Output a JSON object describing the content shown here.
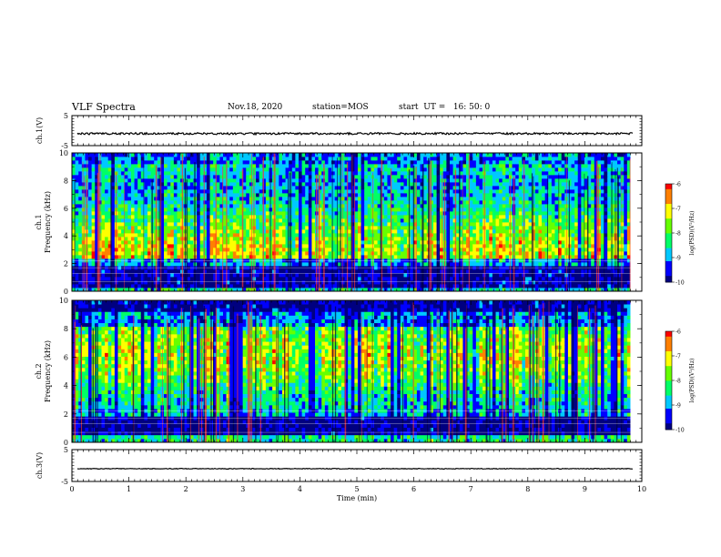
{
  "header": {
    "title": "VLF Spectra",
    "date": "Nov.18, 2020",
    "station": "station=MOS",
    "start_ut": "start  UT =   16: 50: 0"
  },
  "chart_data": [
    {
      "type": "line",
      "name": "ch1_waveform",
      "ylabel": "ch.1(V)",
      "ylim": [
        -5,
        5
      ],
      "yticks": [
        "5",
        "-5"
      ],
      "level": -1,
      "xlim": [
        0,
        10
      ]
    },
    {
      "type": "heatmap",
      "name": "ch1_spectrogram",
      "ylabel": "ch.1",
      "ylabel2": "Frequency (kHz)",
      "ylim": [
        0,
        10
      ],
      "yticks": [
        "0",
        "2",
        "4",
        "6",
        "8",
        "10"
      ],
      "xlim": [
        0,
        10
      ],
      "data_end_min": 9.8,
      "colorbar": {
        "label": "log(PSD)(V²/Hz)",
        "range": [
          -10,
          -6
        ],
        "ticks": [
          "-6",
          "-7",
          "-8",
          "-9",
          "-10"
        ]
      }
    },
    {
      "type": "heatmap",
      "name": "ch2_spectrogram",
      "ylabel": "ch.2",
      "ylabel2": "Frequency (kHz)",
      "ylim": [
        0,
        10
      ],
      "yticks": [
        "0",
        "2",
        "4",
        "6",
        "8",
        "10"
      ],
      "xlim": [
        0,
        10
      ],
      "data_end_min": 9.8,
      "colorbar": {
        "label": "log(PSD)(V²/Hz)",
        "range": [
          -10,
          -6
        ],
        "ticks": [
          "-6",
          "-7",
          "-8",
          "-9",
          "-10"
        ]
      }
    },
    {
      "type": "line",
      "name": "ch3_waveform",
      "ylabel": "ch.3(V)",
      "ylim": [
        -5,
        5
      ],
      "yticks": [
        "5",
        "-5"
      ],
      "level": -1,
      "xlim": [
        0,
        10
      ]
    }
  ],
  "x_axis": {
    "label": "Time (min)",
    "ticks": [
      "0",
      "1",
      "2",
      "3",
      "4",
      "5",
      "6",
      "7",
      "8",
      "9",
      "10"
    ]
  },
  "colors": {
    "colormap": [
      "#000080",
      "#0000ff",
      "#00c8ff",
      "#00ff66",
      "#66ff00",
      "#ffff00",
      "#ff8000",
      "#ff0000",
      "#ffffff"
    ]
  }
}
